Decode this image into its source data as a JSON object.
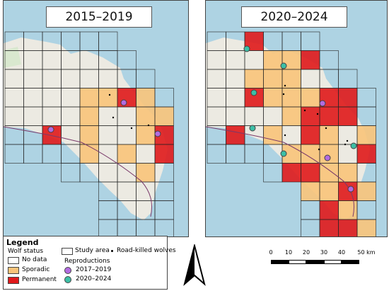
{
  "panels": [
    {
      "title": "2015–2019"
    },
    {
      "title": "2020–2024"
    }
  ],
  "legend": {
    "heading": "Legend",
    "wolf_status_label": "Wolf status",
    "status_items": [
      {
        "label": "No data",
        "color": "#ffffff"
      },
      {
        "label": "Sporadic",
        "color": "#f9c47a"
      },
      {
        "label": "Permanent",
        "color": "#e0191b"
      }
    ],
    "study_area_label": "Study area",
    "road_killed_label": "Road-killed wolves",
    "reproductions_label": "Reproductions",
    "reproduction_items": [
      {
        "label": "2017–2019",
        "color": "#b36be0"
      },
      {
        "label": "2020–2024",
        "color": "#3dbfa6"
      }
    ]
  },
  "scalebar": {
    "ticks": [
      "0",
      "10",
      "20",
      "30",
      "40",
      "50 km"
    ]
  },
  "colors": {
    "sea": "#aed3e3",
    "land": "#eceae2",
    "sporadic": "#f9c47a",
    "permanent": "#e0191b",
    "repro_early": "#b36be0",
    "repro_late": "#3dbfa6"
  }
}
